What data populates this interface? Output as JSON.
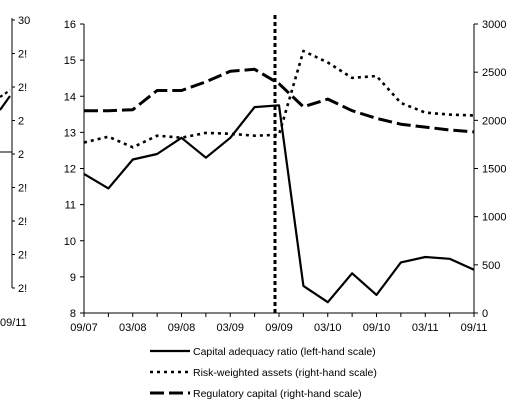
{
  "chart_data": {
    "type": "line",
    "x": [
      "09/07",
      "12/07",
      "03/08",
      "06/08",
      "09/08",
      "12/08",
      "03/09",
      "06/09",
      "09/09",
      "12/09",
      "03/10",
      "06/10",
      "09/10",
      "12/10",
      "03/11",
      "06/11",
      "09/11"
    ],
    "xticks": [
      "09/07",
      "03/08",
      "09/08",
      "03/09",
      "09/09",
      "03/10",
      "09/10",
      "03/11",
      "09/11"
    ],
    "y_left": {
      "lim": [
        8,
        16
      ],
      "ticks": [
        "8",
        "9",
        "10",
        "11",
        "12",
        "13",
        "14",
        "15",
        "16"
      ]
    },
    "y_right": {
      "lim": [
        0,
        3000
      ],
      "ticks": [
        "0",
        "500",
        "1000",
        "1500",
        "2000",
        "2500",
        "3000"
      ]
    },
    "vertical_marker": "09/09",
    "series": [
      {
        "name": "Capital adequacy ratio (left-hand scale)",
        "axis": "left",
        "style": "solid",
        "values": [
          11.85,
          11.45,
          12.25,
          12.4,
          12.85,
          12.3,
          12.85,
          13.7,
          13.75,
          8.75,
          8.3,
          9.1,
          8.5,
          9.4,
          9.55,
          9.5,
          9.2
        ]
      },
      {
        "name": "Risk-weighted assets (right-hand scale)",
        "axis": "right",
        "style": "dotted",
        "values": [
          1770,
          1830,
          1720,
          1840,
          1820,
          1870,
          1860,
          1840,
          1850,
          2720,
          2600,
          2440,
          2460,
          2180,
          2080,
          2060,
          2050
        ]
      },
      {
        "name": "Regulatory capital (right-hand scale)",
        "axis": "right",
        "style": "dashed",
        "values": [
          2100,
          2100,
          2110,
          2310,
          2310,
          2400,
          2510,
          2530,
          2380,
          2140,
          2220,
          2100,
          2020,
          1960,
          1930,
          1900,
          1880
        ]
      }
    ],
    "left_fragment_ticks": [
      "30",
      "2!",
      "2!",
      "2",
      "2",
      "2!",
      "2!",
      "2!",
      "2!"
    ],
    "left_fragment_xtick": "09/11"
  }
}
